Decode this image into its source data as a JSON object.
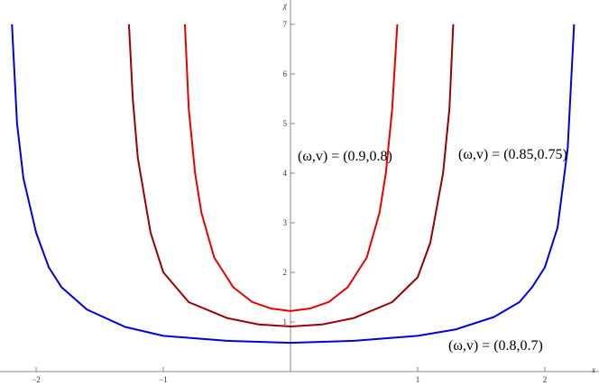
{
  "chart_data": {
    "type": "line",
    "x_label": "x",
    "y_label": "χ",
    "xlim": [
      -2.284,
      2.426
    ],
    "ylim": [
      0,
      7.49
    ],
    "xticks": [
      {
        "value": -2,
        "label": "−2"
      },
      {
        "value": -1,
        "label": "−1"
      },
      1,
      2
    ],
    "yticks": [
      1,
      2,
      3,
      4,
      5,
      6,
      7
    ],
    "series": [
      {
        "color": "#0000e0",
        "x": [
          -2.19,
          -2.15,
          -2.1,
          -2.0,
          -1.9,
          -1.8,
          -1.6,
          -1.3,
          -1.0,
          -0.5,
          0,
          0.5,
          1.0,
          1.3,
          1.6,
          1.8,
          1.9,
          2.0,
          2.1,
          2.18,
          2.23
        ],
        "values": [
          7,
          5.0,
          3.9,
          2.8,
          2.1,
          1.7,
          1.25,
          0.9,
          0.72,
          0.62,
          0.58,
          0.62,
          0.72,
          0.85,
          1.1,
          1.4,
          1.7,
          2.1,
          2.9,
          4.5,
          7
        ]
      },
      {
        "color": "#9b0000",
        "x": [
          -1.27,
          -1.24,
          -1.2,
          -1.1,
          -1.0,
          -0.8,
          -0.5,
          -0.25,
          0,
          0.25,
          0.5,
          0.8,
          1.0,
          1.1,
          1.2,
          1.25,
          1.28
        ],
        "values": [
          7,
          5.5,
          4.3,
          2.8,
          2.0,
          1.4,
          1.08,
          0.95,
          0.91,
          0.95,
          1.08,
          1.4,
          1.9,
          2.6,
          4.0,
          5.3,
          7
        ]
      },
      {
        "color": "#e80000",
        "x": [
          -0.83,
          -0.8,
          -0.75,
          -0.7,
          -0.6,
          -0.45,
          -0.3,
          -0.15,
          0,
          0.15,
          0.3,
          0.45,
          0.6,
          0.7,
          0.75,
          0.8,
          0.84
        ],
        "values": [
          7,
          5.3,
          4.0,
          3.2,
          2.3,
          1.7,
          1.4,
          1.27,
          1.22,
          1.27,
          1.4,
          1.7,
          2.3,
          3.2,
          4.0,
          5.3,
          7
        ]
      }
    ],
    "annotations": [
      "(ω,v) = (0.9,0.8)",
      "(ω,v) = (0.85,0.75)",
      "(ω,v) = (0.8,0.7)"
    ]
  }
}
